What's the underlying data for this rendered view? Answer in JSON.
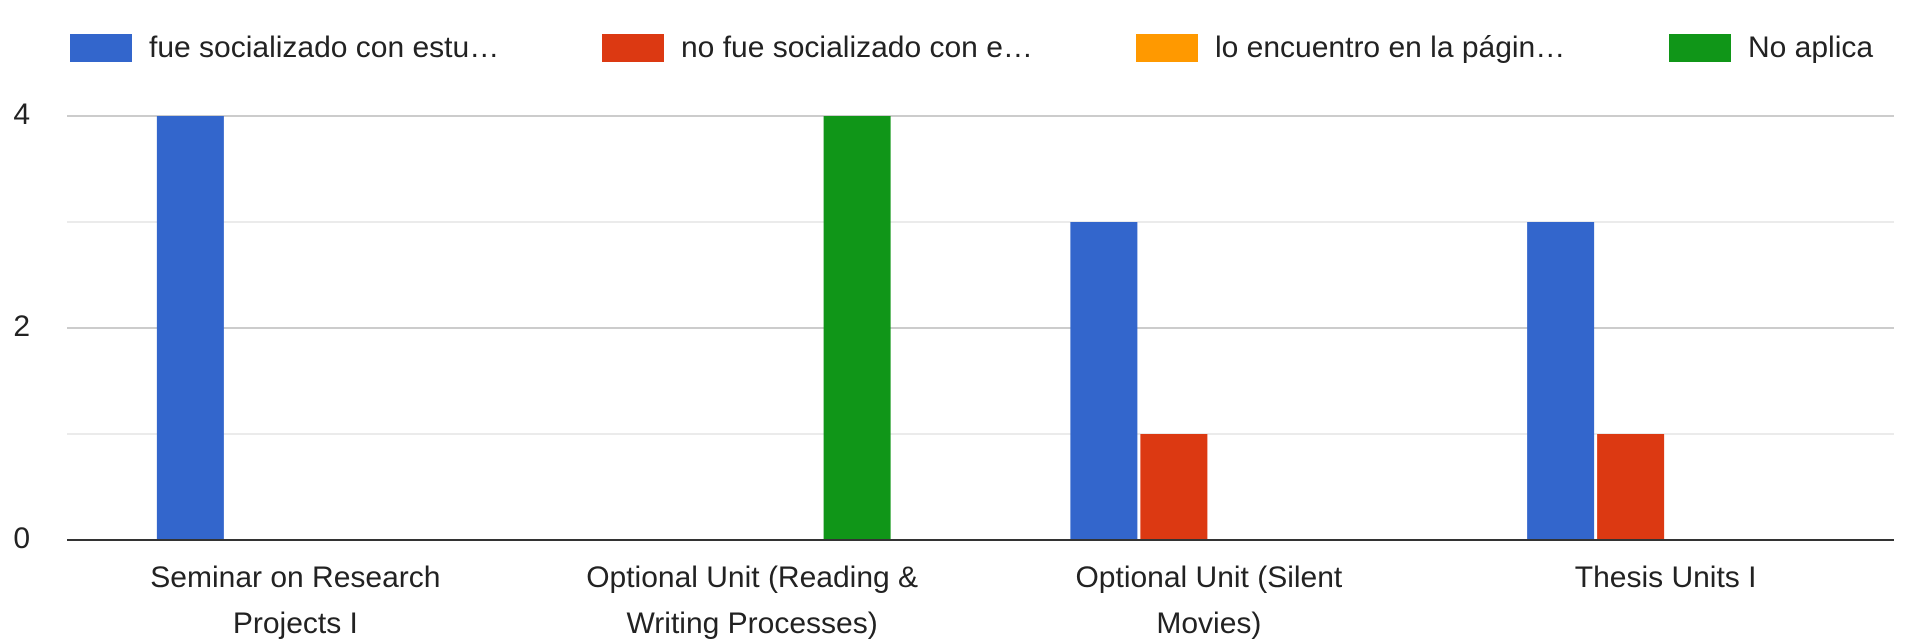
{
  "chart_data": {
    "type": "bar",
    "categories": [
      "Seminar on Research Projects I",
      "Optional Unit (Reading & Writing Processes)",
      "Optional Unit (Silent Movies)",
      "Thesis Units I"
    ],
    "series": [
      {
        "name": "fue socializado con estu…",
        "color": "#3366cc",
        "values": [
          4,
          0,
          3,
          3
        ]
      },
      {
        "name": "no fue socializado con e…",
        "color": "#dc3912",
        "values": [
          0,
          0,
          1,
          1
        ]
      },
      {
        "name": "lo encuentro en la págin…",
        "color": "#ff9900",
        "values": [
          0,
          0,
          0,
          0
        ]
      },
      {
        "name": "No aplica",
        "color": "#109618",
        "values": [
          0,
          4,
          0,
          0
        ]
      }
    ],
    "ylim": [
      0,
      4
    ],
    "yticks": [
      0,
      2,
      4
    ],
    "minor_yticks": [
      1,
      3
    ],
    "grid": true,
    "legend": "top"
  }
}
